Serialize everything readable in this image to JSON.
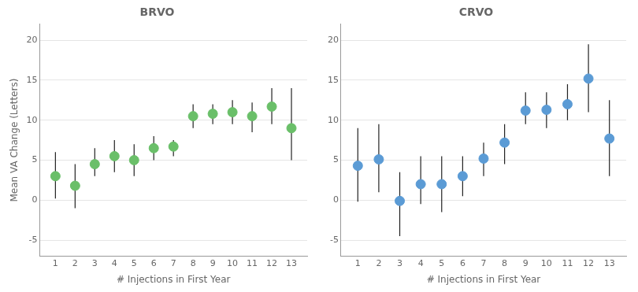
{
  "chart_data": [
    {
      "type": "scatter",
      "title": "BRVO",
      "x": [
        1,
        2,
        3,
        4,
        5,
        6,
        7,
        8,
        9,
        10,
        11,
        12,
        13
      ],
      "values": [
        3.0,
        1.8,
        4.5,
        5.5,
        5.0,
        6.5,
        6.7,
        10.5,
        10.8,
        11.0,
        10.5,
        11.7,
        9.0
      ],
      "y_upper": [
        6.0,
        4.5,
        6.5,
        7.5,
        7.0,
        8.0,
        7.5,
        12.0,
        12.0,
        12.5,
        12.2,
        14.0,
        14.0
      ],
      "y_lower": [
        0.2,
        -1.0,
        3.0,
        3.5,
        3.0,
        5.0,
        5.5,
        9.0,
        9.5,
        9.5,
        8.5,
        9.5,
        5.0
      ],
      "color": "#6abf69",
      "xlabel": "# Injections in First Year",
      "ylabel": "Mean VA Change (Letters)",
      "xlim": [
        0.2,
        13.8
      ],
      "xticks": [
        1,
        2,
        3,
        4,
        5,
        6,
        7,
        8,
        9,
        10,
        11,
        12,
        13
      ],
      "ylim": [
        -7,
        22
      ],
      "yticks": [
        -5,
        0,
        5,
        10,
        15,
        20
      ],
      "grid": "y"
    },
    {
      "type": "scatter",
      "title": "CRVO",
      "x": [
        1,
        2,
        3,
        4,
        5,
        6,
        7,
        8,
        9,
        10,
        11,
        12,
        13
      ],
      "values": [
        4.3,
        5.1,
        -0.1,
        2.0,
        2.0,
        3.0,
        5.2,
        7.2,
        11.2,
        11.3,
        12.0,
        15.2,
        7.7
      ],
      "y_upper": [
        9.0,
        9.5,
        3.5,
        5.5,
        5.5,
        5.5,
        7.2,
        9.5,
        13.5,
        13.5,
        14.5,
        19.5,
        12.5
      ],
      "y_lower": [
        -0.2,
        1.0,
        -4.5,
        -0.5,
        -1.5,
        0.5,
        3.0,
        4.5,
        9.5,
        9.0,
        10.0,
        11.0,
        3.0
      ],
      "color": "#5b9bd5",
      "xlabel": "# Injections in First Year",
      "xlim": [
        0.2,
        13.8
      ],
      "xticks": [
        1,
        2,
        3,
        4,
        5,
        6,
        7,
        8,
        9,
        10,
        11,
        12,
        13
      ],
      "ylim": [
        -7,
        22
      ],
      "yticks": [
        -5,
        0,
        5,
        10,
        15,
        20
      ],
      "grid": "y"
    }
  ]
}
